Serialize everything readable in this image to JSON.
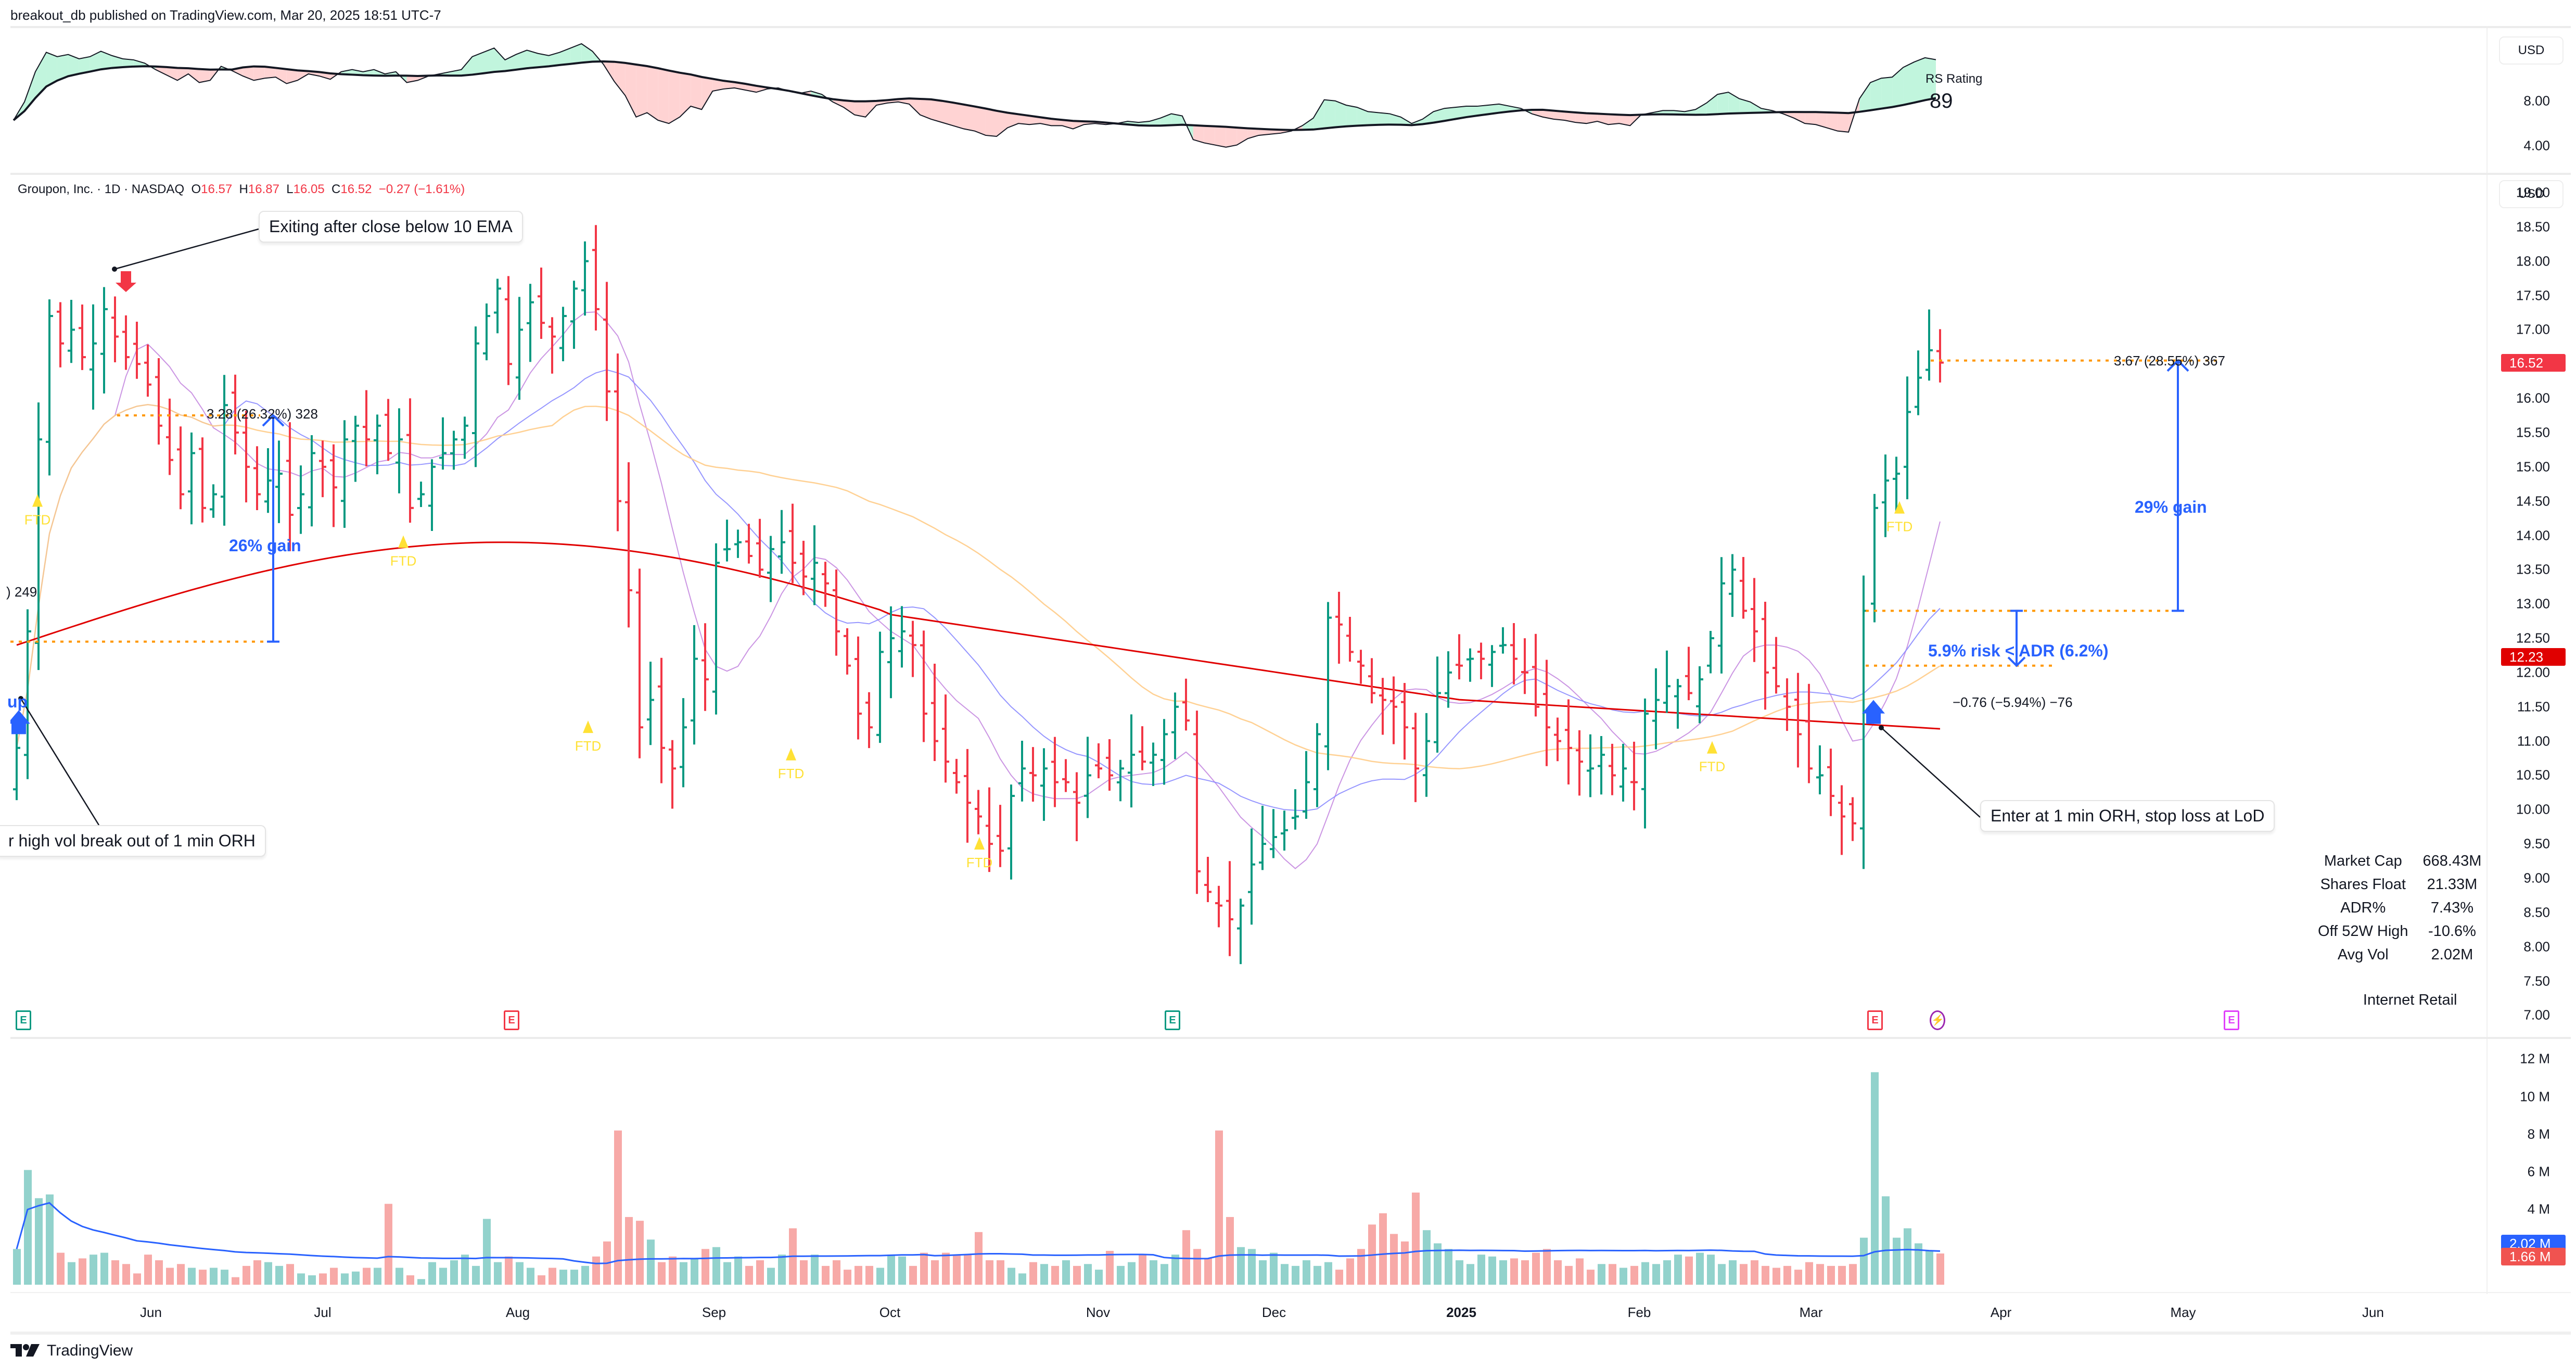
{
  "header": {
    "published": "breakout_db published on TradingView.com, Mar 20, 2025 18:51 UTC-7"
  },
  "rs_panel": {
    "title": "RS Rating",
    "value": "89",
    "currency": "USD",
    "ticks": [
      "8.00",
      "4.00"
    ]
  },
  "legend": {
    "symbol": "Groupon, Inc. · 1D · NASDAQ",
    "o_label": "O",
    "o": "16.57",
    "h_label": "H",
    "h": "16.87",
    "l_label": "L",
    "l": "16.05",
    "c_label": "C",
    "c": "16.52",
    "change": "−0.27 (−1.61%)"
  },
  "price_axis": {
    "currency": "USD",
    "ticks": [
      "19.00",
      "18.50",
      "18.00",
      "17.50",
      "17.00",
      "16.50",
      "16.00",
      "15.50",
      "15.00",
      "14.50",
      "14.00",
      "13.50",
      "13.00",
      "12.50",
      "12.00",
      "11.50",
      "11.00",
      "10.50",
      "10.00",
      "9.50",
      "9.00",
      "8.50",
      "8.00",
      "7.50",
      "7.00"
    ],
    "last_price_badge": {
      "label": "16.52",
      "color": "#f23645"
    },
    "ma_badge": {
      "label": "12.23",
      "color": "#e00000"
    }
  },
  "annotations": {
    "exit_callout": "Exiting after close below 10 EMA",
    "entry_callout_left": "r high vol break out of 1 min ORH",
    "entry_callout_right": "Enter at 1 min ORH, stop loss at LoD",
    "measure_left": "3.28 (26.32%) 328",
    "gain_left": "26% gain",
    "measure_left_partial": ") 249",
    "up_label": "up",
    "measure_right": "3.67 (28.55%) 367",
    "gain_right": "29% gain",
    "risk_label": "5.9% risk < ADR (6.2%)",
    "risk_measure": "−0.76 (−5.94%) −76",
    "ftd_label": "FTD"
  },
  "stats": {
    "rows": [
      {
        "label": "Market Cap",
        "value": "668.43M"
      },
      {
        "label": "Shares Float",
        "value": "21.33M"
      },
      {
        "label": "ADR%",
        "value": "7.43%"
      },
      {
        "label": "Off 52W High",
        "value": "-10.6%"
      },
      {
        "label": "Avg Vol",
        "value": "2.02M"
      }
    ],
    "industry": "Internet Retail"
  },
  "events": [
    {
      "type": "earnings",
      "label": "E",
      "x": 22,
      "color": "#089981"
    },
    {
      "type": "earnings",
      "label": "E",
      "x": 960,
      "color": "#f23645"
    },
    {
      "type": "earnings",
      "label": "E",
      "x": 2230,
      "color": "#089981"
    },
    {
      "type": "earnings",
      "label": "E",
      "x": 3580,
      "color": "#f23645"
    },
    {
      "type": "split-dividend",
      "label": "⚡",
      "x": 3700,
      "color": "#9c27b0"
    },
    {
      "type": "earnings-upcoming",
      "label": "E",
      "x": 4265,
      "color": "#e040fb"
    }
  ],
  "volume_axis": {
    "ticks": [
      "12 M",
      "10 M",
      "8 M",
      "6 M",
      "4 M"
    ],
    "avg_badge": {
      "label": "2.02 M",
      "color": "#2962ff"
    },
    "vol_badge": {
      "label": "1.66 M",
      "color": "#f05350"
    }
  },
  "time_axis": {
    "labels": [
      {
        "text": "Jun",
        "x": 290
      },
      {
        "text": "Jul",
        "x": 620
      },
      {
        "text": "Aug",
        "x": 995
      },
      {
        "text": "Sep",
        "x": 1372
      },
      {
        "text": "Oct",
        "x": 1710
      },
      {
        "text": "Nov",
        "x": 2110
      },
      {
        "text": "Dec",
        "x": 2448
      },
      {
        "text": "2025",
        "x": 2808,
        "bold": true
      },
      {
        "text": "Feb",
        "x": 3150
      },
      {
        "text": "Mar",
        "x": 3480
      },
      {
        "text": "Apr",
        "x": 3845
      },
      {
        "text": "May",
        "x": 4195
      },
      {
        "text": "Jun",
        "x": 4560
      }
    ]
  },
  "footer": {
    "brand": "TradingView"
  },
  "colors": {
    "up": "#089981",
    "down": "#f23645",
    "vol_up": "#92d2cc",
    "vol_down": "#f7a9a7",
    "ma10": "#c58ae0",
    "ma20": "#8b8bff",
    "ma50": "#ffcc88",
    "ma200": "#e00000",
    "accent": "#2962ff",
    "ftd": "#ffe135",
    "level": "#ff9800"
  },
  "chart_data": {
    "type": "ohlc",
    "title": "Groupon, Inc. · 1D · NASDAQ",
    "ylabel": "USD",
    "ylim": [
      7.0,
      19.0
    ],
    "x_labels": [
      "Jun",
      "Jul",
      "Aug",
      "Sep",
      "Oct",
      "Nov",
      "Dec",
      "2025",
      "Feb",
      "Mar",
      "Apr",
      "May",
      "Jun"
    ],
    "last": {
      "open": 16.57,
      "high": 16.87,
      "low": 16.05,
      "close": 16.52,
      "change": -0.27,
      "change_pct": -1.61
    },
    "close_series_approx": [
      10.9,
      12.6,
      15.4,
      17.2,
      16.8,
      17.0,
      16.6,
      16.8,
      17.3,
      16.9,
      16.6,
      16.5,
      16.2,
      15.6,
      15.1,
      14.6,
      15.2,
      14.4,
      14.6,
      15.9,
      15.5,
      15.0,
      14.6,
      14.8,
      14.9,
      14.3,
      14.6,
      15.2,
      15.0,
      14.7,
      15.4,
      15.6,
      15.4,
      15.6,
      15.2,
      15.4,
      14.4,
      14.6,
      15.0,
      15.2,
      15.4,
      15.6,
      16.8,
      17.2,
      17.6,
      16.5,
      17.0,
      17.4,
      17.1,
      16.9,
      17.2,
      17.6,
      18.0,
      17.3,
      16.1,
      14.5,
      13.2,
      11.2,
      11.6,
      10.9,
      10.6,
      11.2,
      12.2,
      11.9,
      13.6,
      13.8,
      13.9,
      13.7,
      13.5,
      13.8,
      13.9,
      13.6,
      13.4,
      13.6,
      13.3,
      12.6,
      12.1,
      11.4,
      11.2,
      12.3,
      12.5,
      12.6,
      12.4,
      11.4,
      11.0,
      10.7,
      10.4,
      10.1,
      9.9,
      9.5,
      9.4,
      10.2,
      10.6,
      10.5,
      10.6,
      10.4,
      10.4,
      10.1,
      10.5,
      10.6,
      10.5,
      10.6,
      10.8,
      10.7,
      10.8,
      11.1,
      11.5,
      11.3,
      9.1,
      8.8,
      8.6,
      8.4,
      8.6,
      9.2,
      9.5,
      9.6,
      9.7,
      9.9,
      10.4,
      11.1,
      12.8,
      12.7,
      12.3,
      12.1,
      11.7,
      11.6,
      11.5,
      11.2,
      10.6,
      11.0,
      11.7,
      12.0,
      12.1,
      12.2,
      12.2,
      12.3,
      12.4,
      12.2,
      12.0,
      11.5,
      11.2,
      11.0,
      10.9,
      10.7,
      10.6,
      10.8,
      10.5,
      10.6,
      10.4,
      11.4,
      11.6,
      11.8,
      11.8,
      11.7,
      11.9,
      12.5,
      13.3,
      13.5,
      12.9,
      12.6,
      12.0,
      11.8,
      11.5,
      11.1,
      10.6,
      10.5,
      10.2,
      9.9,
      9.8,
      12.9,
      14.4,
      14.8,
      14.9,
      15.8,
      16.3,
      16.7,
      16.52
    ],
    "moving_averages": [
      {
        "name": "MA 10",
        "color": "#c58ae0"
      },
      {
        "name": "MA 20",
        "color": "#8b8bff"
      },
      {
        "name": "MA 50",
        "color": "#ffcc88"
      },
      {
        "name": "MA 200",
        "color": "#e00000",
        "last": 12.23
      }
    ],
    "volume_series_approx_M": [
      1.9,
      6.1,
      4.6,
      4.8,
      1.7,
      1.2,
      1.4,
      1.6,
      1.7,
      1.3,
      1.1,
      0.6,
      1.6,
      1.3,
      0.9,
      1.1,
      0.9,
      0.8,
      0.9,
      0.8,
      0.4,
      1.0,
      1.3,
      1.2,
      1.0,
      1.1,
      0.6,
      0.5,
      0.6,
      0.9,
      0.6,
      0.7,
      0.9,
      0.9,
      4.3,
      0.9,
      0.5,
      0.3,
      1.2,
      0.9,
      1.3,
      1.6,
      1.0,
      3.5,
      1.2,
      1.5,
      1.2,
      0.9,
      0.5,
      0.9,
      0.8,
      0.8,
      1.0,
      1.5,
      2.3,
      8.2,
      3.6,
      3.4,
      2.4,
      1.2,
      1.5,
      1.2,
      1.4,
      1.9,
      2.0,
      1.2,
      1.5,
      1.0,
      1.3,
      0.9,
      1.6,
      3.0,
      1.3,
      1.6,
      1.0,
      1.3,
      0.8,
      1.0,
      1.0,
      0.9,
      1.6,
      1.5,
      1.0,
      1.7,
      1.3,
      1.7,
      1.6,
      1.6,
      2.8,
      1.3,
      1.3,
      0.9,
      0.6,
      1.2,
      1.1,
      1.0,
      1.3,
      1.0,
      1.1,
      0.8,
      1.8,
      1.0,
      1.2,
      1.6,
      1.3,
      1.1,
      1.6,
      2.9,
      1.9,
      1.4,
      8.2,
      3.6,
      2.0,
      1.9,
      1.3,
      1.7,
      1.1,
      1.0,
      1.3,
      1.0,
      1.2,
      0.8,
      1.4,
      1.9,
      3.2,
      3.8,
      2.7,
      2.3,
      4.9,
      2.9,
      2.2,
      1.9,
      1.3,
      1.1,
      1.6,
      1.5,
      1.3,
      1.4,
      1.3,
      1.7,
      1.9,
      1.3,
      1.0,
      1.4,
      0.8,
      1.1,
      1.1,
      0.9,
      1.0,
      1.2,
      1.1,
      1.3,
      1.6,
      1.5,
      1.7,
      1.6,
      1.1,
      1.3,
      1.1,
      1.3,
      1.0,
      0.9,
      1.0,
      0.8,
      1.2,
      1.1,
      1.0,
      1.0,
      1.1,
      2.5,
      11.3,
      4.7,
      2.5,
      3.0,
      2.2,
      1.8,
      1.66
    ],
    "volume_ylim_M": [
      0,
      12
    ]
  }
}
